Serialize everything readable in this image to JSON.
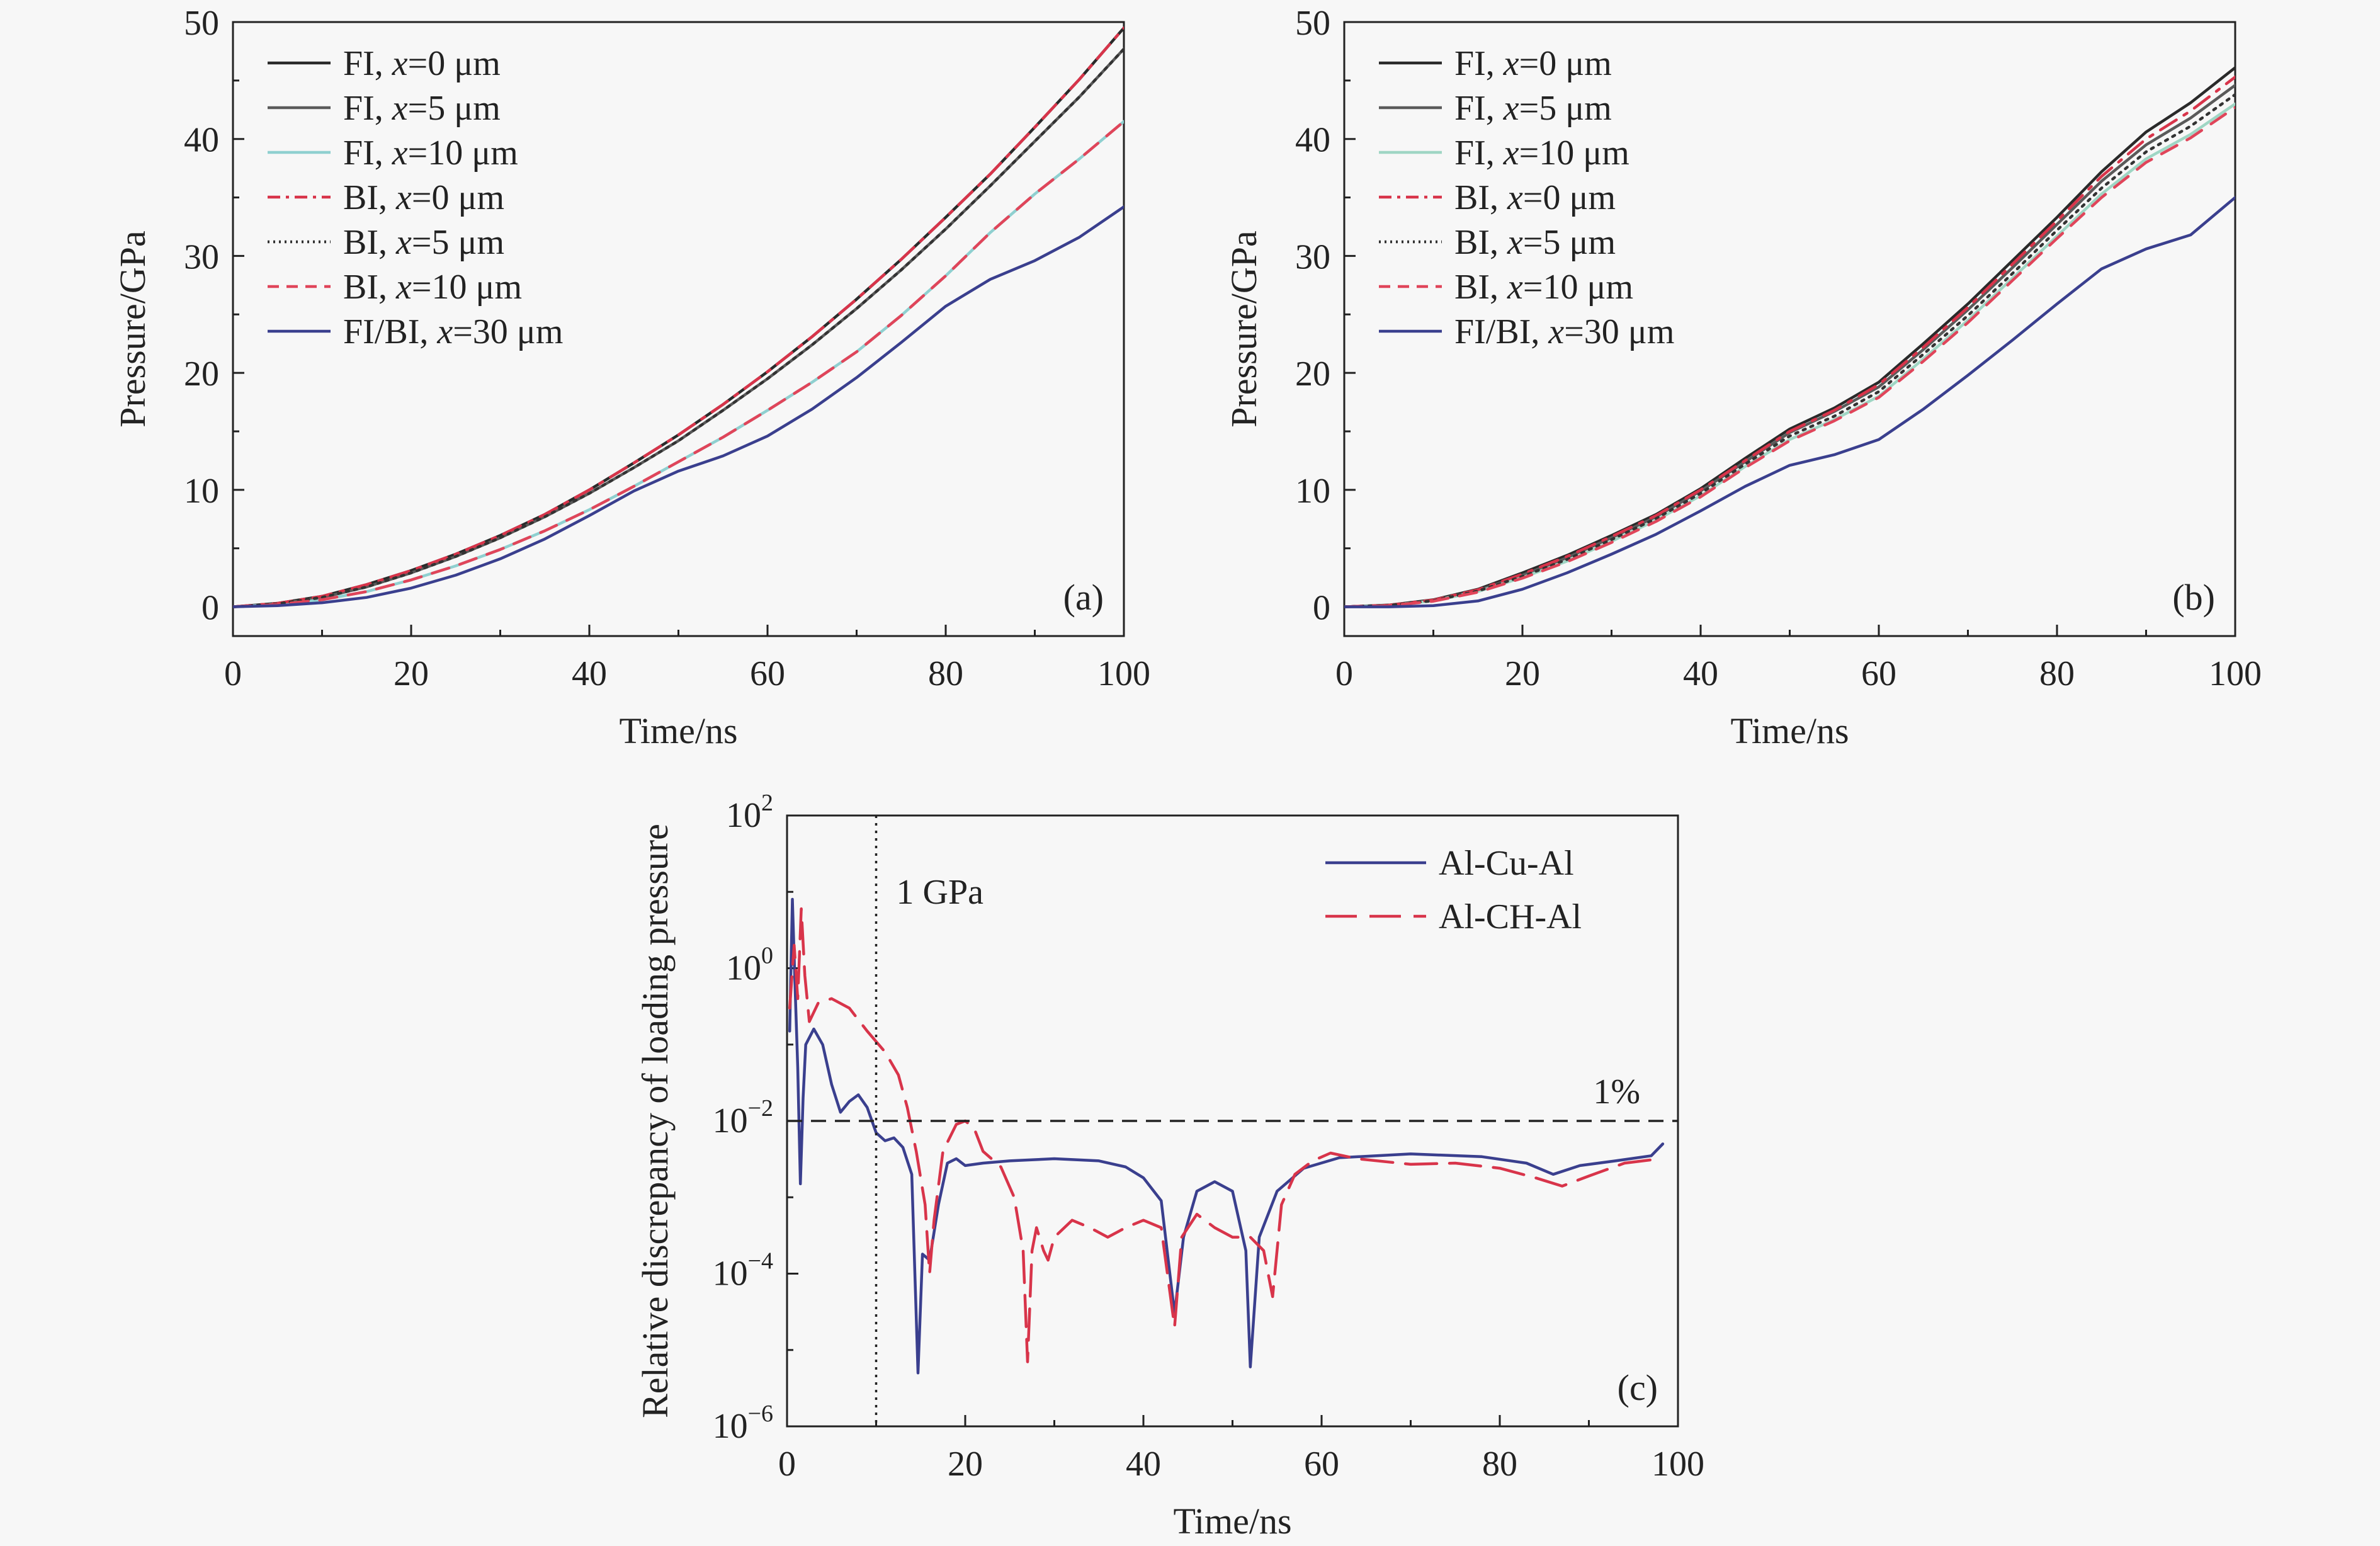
{
  "figure_title": "",
  "chart_data": [
    {
      "type": "line",
      "panel_label": "(a)",
      "xlabel": "Time/ns",
      "ylabel": "Pressure/GPa",
      "xlim": [
        0,
        100
      ],
      "ylim": [
        -2.5,
        50
      ],
      "xticks": [
        0,
        20,
        40,
        60,
        80,
        100
      ],
      "yticks": [
        0,
        10,
        20,
        30,
        40,
        50
      ],
      "legend_position": "top-left",
      "x": [
        0,
        5,
        10,
        15,
        20,
        25,
        30,
        35,
        40,
        45,
        50,
        55,
        60,
        65,
        70,
        75,
        80,
        85,
        90,
        95,
        100
      ],
      "series": [
        {
          "prefix": "FI, ",
          "var": "x",
          "suffix": "=0 μm",
          "color": "#2a2a2a",
          "dash": "solid",
          "values": [
            0,
            0.3,
            0.9,
            1.9,
            3.1,
            4.5,
            6.1,
            7.9,
            10.0,
            12.3,
            14.7,
            17.3,
            20.1,
            23.1,
            26.3,
            29.7,
            33.3,
            37.0,
            41.0,
            45.1,
            49.5
          ]
        },
        {
          "prefix": "FI, ",
          "var": "x",
          "suffix": "=5 μm",
          "color": "#5a5a5a",
          "dash": "solid",
          "values": [
            0,
            0.25,
            0.8,
            1.7,
            2.9,
            4.3,
            5.9,
            7.7,
            9.7,
            11.9,
            14.2,
            16.8,
            19.5,
            22.4,
            25.5,
            28.8,
            32.3,
            36.0,
            39.8,
            43.6,
            47.7
          ]
        },
        {
          "prefix": "FI, ",
          "var": "x",
          "suffix": "=10 μm",
          "color": "#8fd0d0",
          "dash": "solid",
          "values": [
            0,
            0.2,
            0.6,
            1.3,
            2.3,
            3.5,
            4.9,
            6.5,
            8.3,
            10.3,
            12.4,
            14.5,
            16.8,
            19.2,
            21.8,
            24.9,
            28.3,
            32.0,
            35.3,
            38.3,
            41.5
          ]
        },
        {
          "prefix": "BI, ",
          "var": "x",
          "suffix": "=0 μm",
          "color": "#d8344a",
          "dash": "dashdot",
          "values": [
            0,
            0.3,
            0.9,
            1.9,
            3.1,
            4.5,
            6.1,
            7.9,
            10.0,
            12.3,
            14.7,
            17.3,
            20.1,
            23.1,
            26.3,
            29.7,
            33.3,
            37.0,
            41.0,
            45.1,
            49.5
          ]
        },
        {
          "prefix": "BI, ",
          "var": "x",
          "suffix": "=5 μm",
          "color": "#333333",
          "dash": "dotted",
          "values": [
            0,
            0.25,
            0.8,
            1.7,
            2.9,
            4.3,
            5.9,
            7.7,
            9.7,
            11.9,
            14.2,
            16.8,
            19.5,
            22.4,
            25.5,
            28.8,
            32.3,
            36.0,
            39.8,
            43.6,
            47.7
          ]
        },
        {
          "prefix": "BI, ",
          "var": "x",
          "suffix": "=10 μm",
          "color": "#e0455a",
          "dash": "dashed",
          "values": [
            0,
            0.2,
            0.6,
            1.3,
            2.3,
            3.5,
            4.9,
            6.5,
            8.3,
            10.3,
            12.4,
            14.5,
            16.8,
            19.2,
            21.8,
            24.9,
            28.3,
            32.0,
            35.3,
            38.3,
            41.5
          ]
        },
        {
          "prefix": "FI/BI, ",
          "var": "x",
          "suffix": "=30 μm",
          "color": "#3a3f8e",
          "dash": "solid",
          "values": [
            0,
            0.1,
            0.35,
            0.8,
            1.6,
            2.7,
            4.1,
            5.8,
            7.8,
            9.9,
            11.6,
            12.9,
            14.6,
            16.9,
            19.6,
            22.6,
            25.7,
            28.0,
            29.6,
            31.6,
            34.2
          ]
        }
      ]
    },
    {
      "type": "line",
      "panel_label": "(b)",
      "xlabel": "Time/ns",
      "ylabel": "Pressure/GPa",
      "xlim": [
        0,
        100
      ],
      "ylim": [
        -2.5,
        50
      ],
      "xticks": [
        0,
        20,
        40,
        60,
        80,
        100
      ],
      "yticks": [
        0,
        10,
        20,
        30,
        40,
        50
      ],
      "legend_position": "top-left",
      "x": [
        0,
        5,
        10,
        15,
        20,
        25,
        30,
        35,
        40,
        45,
        50,
        55,
        60,
        65,
        70,
        75,
        80,
        85,
        90,
        95,
        100
      ],
      "series": [
        {
          "prefix": "FI, ",
          "var": "x",
          "suffix": "=0 μm",
          "color": "#2a2a2a",
          "dash": "solid",
          "values": [
            0,
            0.15,
            0.6,
            1.5,
            2.9,
            4.4,
            6.1,
            7.9,
            10.1,
            12.7,
            15.2,
            17.0,
            19.2,
            22.5,
            25.9,
            29.6,
            33.3,
            37.2,
            40.6,
            43.1,
            46.1
          ]
        },
        {
          "prefix": "FI, ",
          "var": "x",
          "suffix": "=5 μm",
          "color": "#5a5a5a",
          "dash": "solid",
          "values": [
            0,
            0.13,
            0.55,
            1.4,
            2.7,
            4.2,
            5.9,
            7.7,
            9.9,
            12.4,
            14.9,
            16.7,
            18.8,
            22.0,
            25.4,
            29.0,
            32.7,
            36.4,
            39.5,
            41.8,
            44.6
          ]
        },
        {
          "prefix": "FI, ",
          "var": "x",
          "suffix": "=10 μm",
          "color": "#9fd6c4",
          "dash": "solid",
          "values": [
            0,
            0.1,
            0.5,
            1.3,
            2.5,
            3.9,
            5.6,
            7.4,
            9.5,
            12.0,
            14.3,
            16.0,
            18.0,
            21.2,
            24.5,
            28.1,
            31.7,
            35.3,
            38.3,
            40.4,
            43.0
          ]
        },
        {
          "prefix": "BI, ",
          "var": "x",
          "suffix": "=0 μm",
          "color": "#d8344a",
          "dash": "dashdot",
          "values": [
            0,
            0.14,
            0.58,
            1.45,
            2.8,
            4.3,
            6.0,
            7.8,
            10.0,
            12.5,
            15.0,
            16.8,
            19.0,
            22.2,
            25.6,
            29.3,
            33.0,
            36.8,
            40.0,
            42.4,
            45.3
          ]
        },
        {
          "prefix": "BI, ",
          "var": "x",
          "suffix": "=5 μm",
          "color": "#333333",
          "dash": "dotted",
          "values": [
            0,
            0.12,
            0.52,
            1.35,
            2.6,
            4.05,
            5.75,
            7.55,
            9.7,
            12.2,
            14.6,
            16.3,
            18.4,
            21.6,
            24.9,
            28.5,
            32.2,
            35.8,
            38.9,
            41.1,
            43.8
          ]
        },
        {
          "prefix": "BI, ",
          "var": "x",
          "suffix": "=10 μm",
          "color": "#e0455a",
          "dash": "dashed",
          "values": [
            0,
            0.1,
            0.48,
            1.25,
            2.45,
            3.85,
            5.5,
            7.3,
            9.4,
            11.9,
            14.2,
            15.9,
            17.9,
            21.0,
            24.3,
            27.9,
            31.5,
            35.0,
            38.0,
            40.1,
            42.7
          ]
        },
        {
          "prefix": "FI/BI, ",
          "var": "x",
          "suffix": "=30 μm",
          "color": "#3a3f8e",
          "dash": "solid",
          "values": [
            0,
            0.0,
            0.1,
            0.5,
            1.5,
            2.9,
            4.5,
            6.2,
            8.2,
            10.3,
            12.1,
            13.0,
            14.3,
            16.9,
            19.8,
            22.8,
            25.9,
            28.9,
            30.6,
            31.8,
            35.0
          ]
        }
      ]
    },
    {
      "type": "line",
      "panel_label": "(c)",
      "xlabel": "Time/ns",
      "ylabel": "Relative discrepancy of loading pressure",
      "yscale": "log",
      "xlim": [
        0,
        100
      ],
      "ylim": [
        1e-06,
        100
      ],
      "xticks": [
        0,
        20,
        40,
        60,
        80,
        100
      ],
      "yticks_exponents": [
        -6,
        -4,
        -2,
        0,
        2
      ],
      "ytick_base": "10",
      "legend_position": "top-right",
      "annotations": [
        {
          "text": "1 GPa",
          "x": 10,
          "kind": "vertical-dotted-line"
        },
        {
          "text": "1%",
          "y": 0.01,
          "kind": "horizontal-dashed-line"
        }
      ],
      "series": [
        {
          "name": "Al-Cu-Al",
          "color": "#3a3f8e",
          "dash": "solid",
          "points": [
            [
              0.3,
              0.15
            ],
            [
              0.6,
              8
            ],
            [
              0.9,
              0.6
            ],
            [
              1.2,
              0.05
            ],
            [
              1.5,
              0.0015
            ],
            [
              1.8,
              0.02
            ],
            [
              2.1,
              0.1
            ],
            [
              3,
              0.16
            ],
            [
              4,
              0.1
            ],
            [
              5,
              0.03
            ],
            [
              6,
              0.013
            ],
            [
              7,
              0.018
            ],
            [
              8,
              0.022
            ],
            [
              9,
              0.015
            ],
            [
              10,
              0.007
            ],
            [
              11,
              0.0055
            ],
            [
              12,
              0.006
            ],
            [
              13,
              0.0045
            ],
            [
              14,
              0.002
            ],
            [
              14.7,
              5e-06
            ],
            [
              15.2,
              0.00018
            ],
            [
              16,
              0.00015
            ],
            [
              17,
              0.0008
            ],
            [
              18,
              0.0028
            ],
            [
              19,
              0.0032
            ],
            [
              20,
              0.0026
            ],
            [
              22,
              0.0028
            ],
            [
              25,
              0.003
            ],
            [
              30,
              0.0032
            ],
            [
              35,
              0.003
            ],
            [
              38,
              0.0025
            ],
            [
              40,
              0.0018
            ],
            [
              42,
              0.0009
            ],
            [
              43.5,
              3e-05
            ],
            [
              44.5,
              0.0003
            ],
            [
              46,
              0.0012
            ],
            [
              48,
              0.0016
            ],
            [
              50,
              0.0012
            ],
            [
              51.5,
              0.0002
            ],
            [
              52,
              6e-06
            ],
            [
              53,
              0.0003
            ],
            [
              55,
              0.0012
            ],
            [
              58,
              0.0024
            ],
            [
              62,
              0.0033
            ],
            [
              70,
              0.0037
            ],
            [
              78,
              0.0034
            ],
            [
              83,
              0.0028
            ],
            [
              86,
              0.002
            ],
            [
              89,
              0.0026
            ],
            [
              93,
              0.003
            ],
            [
              97,
              0.0035
            ],
            [
              98.3,
              0.005
            ]
          ]
        },
        {
          "name": "Al-CH-Al",
          "color": "#d8344a",
          "dash": "longdash",
          "points": [
            [
              0.3,
              0.3
            ],
            [
              0.8,
              2
            ],
            [
              1.2,
              0.4
            ],
            [
              1.6,
              6
            ],
            [
              2,
              0.8
            ],
            [
              2.5,
              0.2
            ],
            [
              3.5,
              0.35
            ],
            [
              5,
              0.4
            ],
            [
              7,
              0.3
            ],
            [
              9,
              0.15
            ],
            [
              11,
              0.08
            ],
            [
              12.5,
              0.04
            ],
            [
              13.5,
              0.015
            ],
            [
              14.5,
              0.004
            ],
            [
              15.5,
              0.0008
            ],
            [
              16,
              0.0001
            ],
            [
              16.5,
              0.0005
            ],
            [
              17.5,
              0.004
            ],
            [
              19,
              0.009
            ],
            [
              20,
              0.01
            ],
            [
              21,
              0.008
            ],
            [
              22,
              0.004
            ],
            [
              24,
              0.0025
            ],
            [
              25.5,
              0.001
            ],
            [
              26.5,
              0.0002
            ],
            [
              27,
              7e-06
            ],
            [
              27.5,
              0.0002
            ],
            [
              28,
              0.0004
            ],
            [
              28.8,
              0.0002
            ],
            [
              29.3,
              0.00015
            ],
            [
              30,
              0.0003
            ],
            [
              32,
              0.0005
            ],
            [
              34,
              0.0004
            ],
            [
              36,
              0.0003
            ],
            [
              38,
              0.0004
            ],
            [
              40,
              0.0005
            ],
            [
              42,
              0.0004
            ],
            [
              43.5,
              2e-05
            ],
            [
              44.3,
              0.0003
            ],
            [
              46,
              0.0006
            ],
            [
              48,
              0.0004
            ],
            [
              50,
              0.0003
            ],
            [
              52,
              0.0003
            ],
            [
              53.5,
              0.0002
            ],
            [
              54.5,
              5e-05
            ],
            [
              55.5,
              0.0008
            ],
            [
              57,
              0.002
            ],
            [
              59,
              0.003
            ],
            [
              61,
              0.0038
            ],
            [
              64,
              0.0032
            ],
            [
              70,
              0.0027
            ],
            [
              75,
              0.0028
            ],
            [
              80,
              0.0024
            ],
            [
              84,
              0.0018
            ],
            [
              87,
              0.0014
            ],
            [
              90,
              0.0019
            ],
            [
              94,
              0.0028
            ],
            [
              98,
              0.0032
            ]
          ]
        }
      ]
    }
  ]
}
